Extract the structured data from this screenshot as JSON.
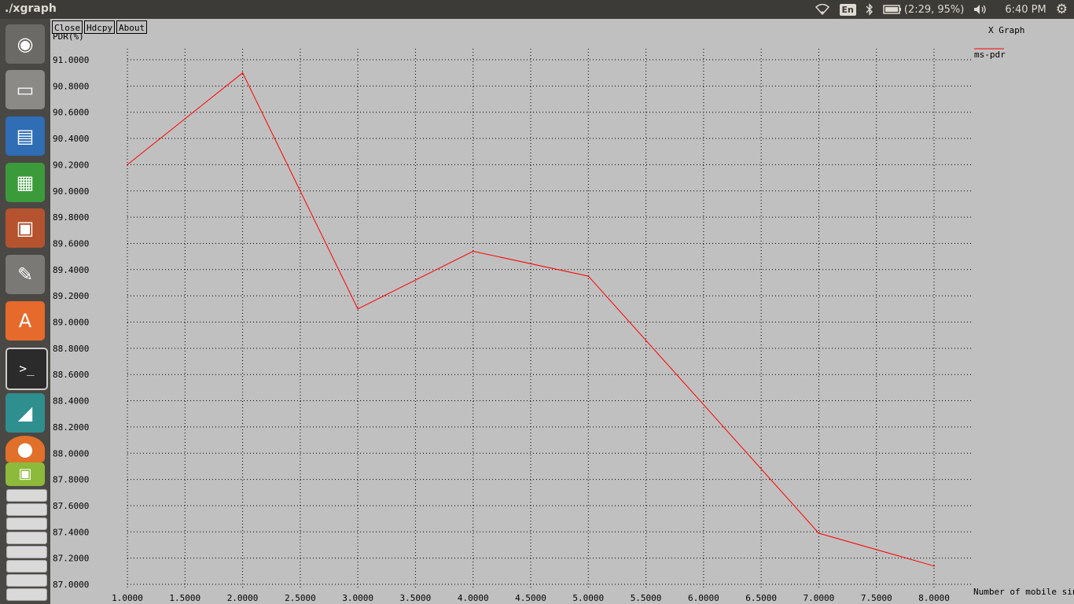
{
  "topbar": {
    "title": "./xgraph",
    "lang": "En",
    "battery": "(2:29, 95%)",
    "clock": "6:40 PM"
  },
  "launcher": {
    "items": [
      "dash-home-icon",
      "file-manager-icon",
      "writer-icon",
      "calc-icon",
      "impress-icon",
      "system-settings-icon",
      "software-center-icon",
      "terminal-icon",
      "drawing-app-icon",
      "firefox-icon",
      "workspace-stack-icon"
    ]
  },
  "window": {
    "buttons": {
      "close": "Close",
      "hdcpy": "Hdcpy",
      "about": "About"
    },
    "graph_title": "X Graph"
  },
  "chart_data": {
    "type": "line",
    "title": "X Graph",
    "xlabel": "Number of mobile sink",
    "ylabel": "PDR(%)",
    "xlim": [
      1.0,
      8.0
    ],
    "ylim": [
      87.0,
      91.0
    ],
    "xticks": [
      "1.0000",
      "1.5000",
      "2.0000",
      "2.5000",
      "3.0000",
      "3.5000",
      "4.0000",
      "4.5000",
      "5.0000",
      "5.5000",
      "6.0000",
      "6.5000",
      "7.0000",
      "7.5000",
      "8.0000"
    ],
    "yticks": [
      "87.0000",
      "87.2000",
      "87.4000",
      "87.6000",
      "87.8000",
      "88.0000",
      "88.2000",
      "88.4000",
      "88.6000",
      "88.8000",
      "89.0000",
      "89.2000",
      "89.4000",
      "89.6000",
      "89.8000",
      "90.0000",
      "90.2000",
      "90.4000",
      "90.6000",
      "90.8000",
      "91.0000"
    ],
    "grid": true,
    "legend_position": "top-right",
    "series": [
      {
        "name": "ms-pdr",
        "color": "#ff0000",
        "x": [
          1,
          2,
          3,
          4,
          5,
          7,
          8
        ],
        "y": [
          90.2,
          90.9,
          89.1,
          89.54,
          89.35,
          87.39,
          87.14
        ]
      }
    ]
  }
}
